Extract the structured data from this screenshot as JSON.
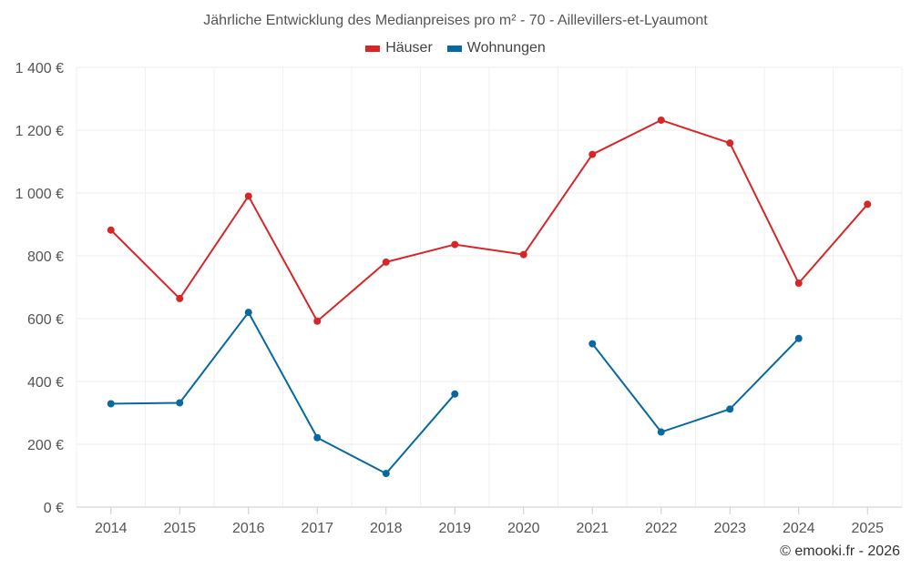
{
  "chart_data": {
    "type": "line",
    "title": "Jährliche Entwicklung des Medianpreises pro m² - 70 - Aillevillers-et-Lyaumont",
    "categories": [
      "2014",
      "2015",
      "2016",
      "2017",
      "2018",
      "2019",
      "2020",
      "2021",
      "2022",
      "2023",
      "2024",
      "2025"
    ],
    "series": [
      {
        "name": "Häuser",
        "color": "#d62728",
        "values": [
          882,
          664,
          990,
          592,
          780,
          836,
          804,
          1123,
          1232,
          1159,
          713,
          964
        ]
      },
      {
        "name": "Wohnungen",
        "color": "#0868a0",
        "values": [
          329,
          332,
          620,
          221,
          107,
          360,
          null,
          520,
          239,
          312,
          537,
          null
        ]
      }
    ],
    "ylim": [
      0,
      1400
    ],
    "yticks": [
      0,
      200,
      400,
      600,
      800,
      1000,
      1200,
      1400
    ],
    "ytick_labels": [
      "0 €",
      "200 €",
      "400 €",
      "600 €",
      "800 €",
      "1 000 €",
      "1 200 €",
      "1 400 €"
    ],
    "grid": true,
    "legend_position": "top-center"
  },
  "credit": "© emooki.fr - 2026"
}
